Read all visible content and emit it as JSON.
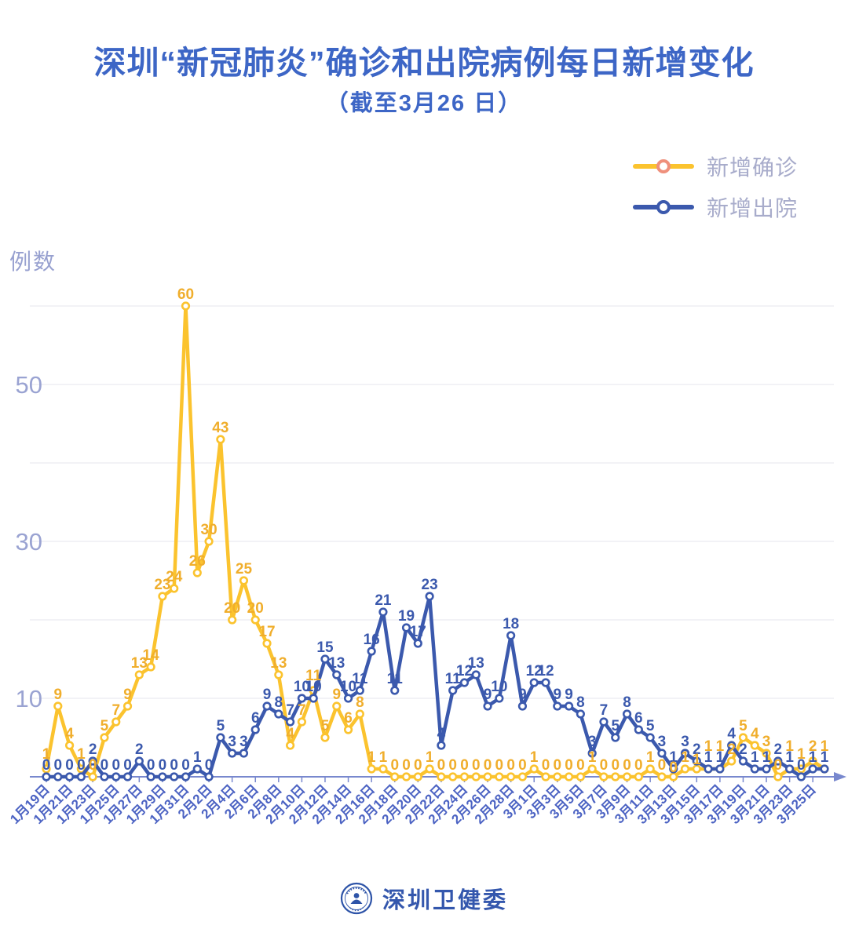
{
  "header": {
    "title": "深圳“新冠肺炎”确诊和出院病例每日新增变化",
    "subtitle": "（截至3月26 日）"
  },
  "legend": {
    "items": [
      {
        "label": "新增确诊",
        "line_color": "#FBC32E",
        "ring_color": "#EF907C"
      },
      {
        "label": "新增出院",
        "line_color": "#3B59AD",
        "ring_color": "#3B59AD"
      }
    ]
  },
  "y_axis_title": "例数",
  "footer": {
    "brand": "深圳卫健委",
    "logo": "shenzhen-health-commission-seal"
  },
  "chart_data": {
    "type": "line",
    "categories": [
      "1月19日",
      "1月20日",
      "1月21日",
      "1月22日",
      "1月23日",
      "1月24日",
      "1月25日",
      "1月26日",
      "1月27日",
      "1月28日",
      "1月29日",
      "1月30日",
      "1月31日",
      "2月1日",
      "2月2日",
      "2月3日",
      "2月4日",
      "2月5日",
      "2月6日",
      "2月7日",
      "2月8日",
      "2月9日",
      "2月10日",
      "2月11日",
      "2月12日",
      "2月13日",
      "2月14日",
      "2月15日",
      "2月16日",
      "2月17日",
      "2月18日",
      "2月19日",
      "2月20日",
      "2月21日",
      "2月22日",
      "2月23日",
      "2月24日",
      "2月25日",
      "2月26日",
      "2月27日",
      "2月28日",
      "2月29日",
      "3月1日",
      "3月2日",
      "3月3日",
      "3月4日",
      "3月5日",
      "3月6日",
      "3月7日",
      "3月8日",
      "3月9日",
      "3月10日",
      "3月11日",
      "3月12日",
      "3月13日",
      "3月14日",
      "3月15日",
      "3月16日",
      "3月17日",
      "3月18日",
      "3月19日",
      "3月20日",
      "3月21日",
      "3月22日",
      "3月23日",
      "3月24日",
      "3月25日",
      "3月26日"
    ],
    "series": [
      {
        "name": "新增确诊",
        "color": "#FBC32E",
        "label_color": "#F0AE2C",
        "values": [
          1,
          9,
          4,
          1,
          0,
          5,
          7,
          9,
          13,
          14,
          23,
          24,
          60,
          26,
          30,
          43,
          20,
          25,
          20,
          17,
          13,
          4,
          7,
          11,
          5,
          9,
          6,
          8,
          1,
          1,
          0,
          0,
          0,
          1,
          0,
          0,
          0,
          0,
          0,
          0,
          0,
          0,
          1,
          0,
          0,
          0,
          0,
          1,
          0,
          0,
          0,
          0,
          1,
          0,
          0,
          1,
          1,
          1,
          1,
          2,
          5,
          4,
          3,
          0,
          1,
          1,
          2,
          1
        ]
      },
      {
        "name": "新增出院",
        "color": "#3B59AD",
        "label_color": "#3B59AD",
        "values": [
          0,
          0,
          0,
          0,
          2,
          0,
          0,
          0,
          2,
          0,
          0,
          0,
          0,
          1,
          0,
          5,
          3,
          3,
          6,
          9,
          8,
          7,
          10,
          10,
          15,
          13,
          10,
          11,
          16,
          21,
          11,
          19,
          17,
          23,
          4,
          11,
          12,
          13,
          9,
          10,
          18,
          9,
          12,
          12,
          9,
          9,
          8,
          3,
          7,
          5,
          8,
          6,
          5,
          3,
          1,
          3,
          2,
          1,
          1,
          4,
          2,
          1,
          1,
          2,
          1,
          0,
          1,
          1
        ]
      }
    ],
    "ylim": [
      0,
      62
    ],
    "gridlines": [
      10,
      20,
      30,
      40,
      50,
      60
    ],
    "yticks_labeled": [
      10,
      30,
      50
    ],
    "x_tick_step": 2,
    "legend_position": "top-right",
    "style": {
      "grid_color": "#EAEAF1",
      "axis_color": "#7888CE",
      "ytick_color": "#9AA3D2",
      "xtick_color": "#4C63C3"
    }
  }
}
